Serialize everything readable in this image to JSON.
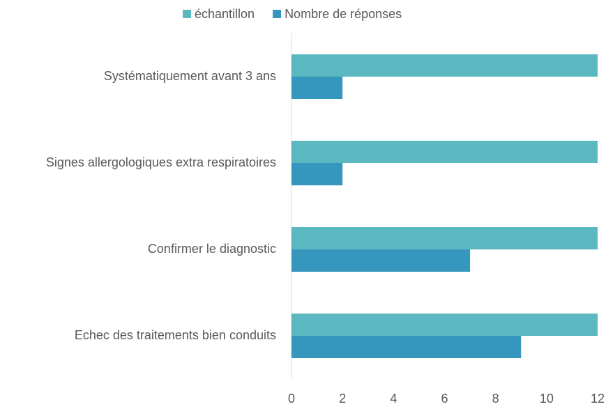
{
  "chart_data": {
    "type": "hbar",
    "categories": [
      "Systématiquement avant 3 ans",
      "Signes allergologiques extra respiratoires",
      "Confirmer le diagnostic",
      "Echec des traitements bien conduits"
    ],
    "series": [
      {
        "name": "échantillon",
        "color": "#5bb8c0",
        "values": [
          12,
          12,
          12,
          12
        ]
      },
      {
        "name": "Nombre de réponses",
        "color": "#3596be",
        "values": [
          2,
          2,
          7,
          9
        ]
      }
    ],
    "xlim": [
      0,
      12
    ],
    "xticks": [
      0,
      2,
      4,
      6,
      8,
      10,
      12
    ],
    "grid": false,
    "legend": "top"
  }
}
